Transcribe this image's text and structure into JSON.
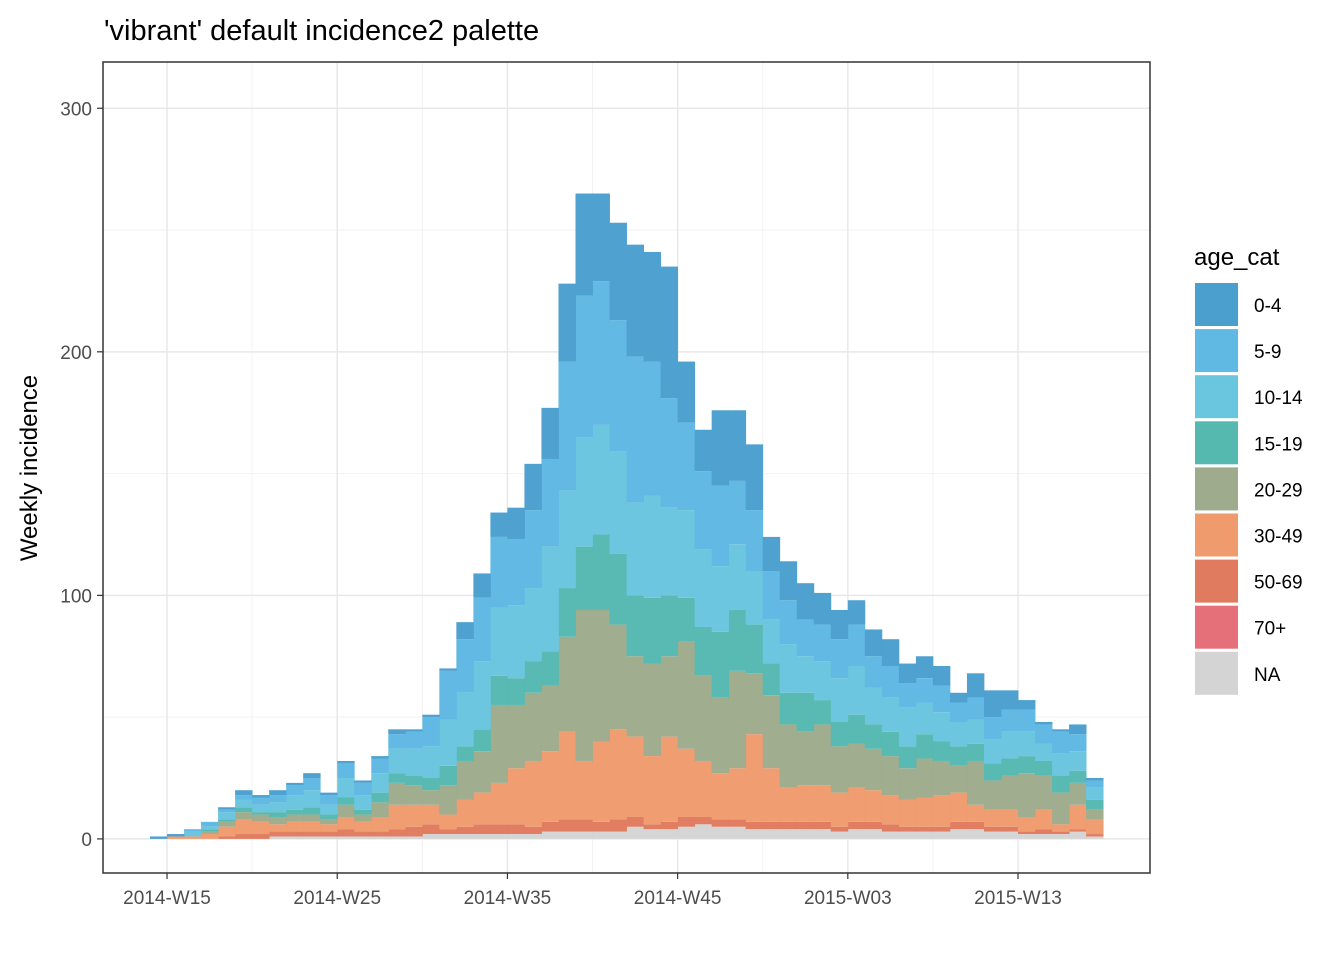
{
  "chart_data": {
    "type": "bar",
    "stacked": true,
    "title": "'vibrant' default incidence2 palette",
    "xlabel": "",
    "ylabel": "Weekly incidence",
    "ylim": [
      -14,
      319
    ],
    "yticks": [
      0,
      100,
      200,
      300
    ],
    "grid": true,
    "legend": {
      "title": "age_cat",
      "position": "right"
    },
    "x_start_week": "2014-W14",
    "x_ticks": [
      "2014-W15",
      "2014-W25",
      "2014-W35",
      "2014-W45",
      "2015-W03",
      "2015-W13"
    ],
    "categories": [
      "2014-W14",
      "2014-W15",
      "2014-W16",
      "2014-W17",
      "2014-W18",
      "2014-W19",
      "2014-W20",
      "2014-W21",
      "2014-W22",
      "2014-W23",
      "2014-W24",
      "2014-W25",
      "2014-W26",
      "2014-W27",
      "2014-W28",
      "2014-W29",
      "2014-W30",
      "2014-W31",
      "2014-W32",
      "2014-W33",
      "2014-W34",
      "2014-W35",
      "2014-W36",
      "2014-W37",
      "2014-W38",
      "2014-W39",
      "2014-W40",
      "2014-W41",
      "2014-W42",
      "2014-W43",
      "2014-W44",
      "2014-W45",
      "2014-W46",
      "2014-W47",
      "2014-W48",
      "2014-W49",
      "2014-W50",
      "2014-W51",
      "2014-W52",
      "2015-W01",
      "2015-W02",
      "2015-W03",
      "2015-W04",
      "2015-W05",
      "2015-W06",
      "2015-W07",
      "2015-W08",
      "2015-W09",
      "2015-W10",
      "2015-W11",
      "2015-W12",
      "2015-W13",
      "2015-W14",
      "2015-W15",
      "2015-W16",
      "2015-W17"
    ],
    "series": [
      {
        "name": "NA",
        "color": "#D4D4D4",
        "values": [
          0,
          0,
          0,
          0,
          0,
          0,
          0,
          1,
          1,
          1,
          1,
          1,
          1,
          1,
          1,
          1,
          2,
          2,
          2,
          2,
          2,
          2,
          2,
          3,
          3,
          3,
          3,
          3,
          5,
          4,
          4,
          5,
          6,
          5,
          5,
          4,
          4,
          4,
          4,
          4,
          3,
          4,
          4,
          3,
          3,
          3,
          3,
          4,
          4,
          3,
          3,
          2,
          2,
          2,
          3,
          1
        ]
      },
      {
        "name": "70+",
        "color": "#E5707A",
        "values": [
          0,
          0,
          0,
          0,
          0,
          0,
          0,
          0,
          0,
          0,
          0,
          0,
          0,
          0,
          0,
          0,
          0,
          0,
          0,
          0,
          0,
          0,
          0,
          0,
          0,
          0,
          0,
          0,
          0,
          0,
          0,
          0,
          0,
          0,
          0,
          0,
          0,
          0,
          0,
          0,
          0,
          0,
          0,
          0,
          0,
          0,
          0,
          0,
          0,
          0,
          0,
          0,
          0,
          0,
          0,
          0
        ]
      },
      {
        "name": "50-69",
        "color": "#E07B5F",
        "values": [
          0,
          0,
          0,
          0,
          1,
          2,
          2,
          2,
          2,
          2,
          2,
          3,
          2,
          2,
          3,
          4,
          4,
          2,
          3,
          4,
          4,
          4,
          3,
          4,
          5,
          5,
          4,
          5,
          4,
          2,
          3,
          4,
          3,
          3,
          3,
          3,
          3,
          3,
          3,
          3,
          2,
          3,
          3,
          3,
          2,
          2,
          2,
          3,
          3,
          2,
          2,
          1,
          2,
          1,
          1,
          1
        ]
      },
      {
        "name": "30-49",
        "color": "#F09B6E",
        "values": [
          0,
          1,
          1,
          2,
          4,
          6,
          5,
          3,
          4,
          4,
          3,
          5,
          4,
          6,
          10,
          9,
          8,
          6,
          11,
          13,
          17,
          23,
          27,
          29,
          36,
          24,
          33,
          37,
          33,
          28,
          35,
          28,
          23,
          19,
          21,
          36,
          22,
          14,
          15,
          15,
          14,
          14,
          13,
          12,
          11,
          12,
          13,
          12,
          7,
          7,
          7,
          6,
          8,
          3,
          10,
          6
        ]
      },
      {
        "name": "20-29",
        "color": "#9EAB8D",
        "values": [
          0,
          0,
          0,
          1,
          2,
          3,
          3,
          3,
          3,
          3,
          2,
          5,
          3,
          6,
          9,
          8,
          6,
          12,
          16,
          17,
          32,
          26,
          28,
          27,
          39,
          62,
          54,
          43,
          33,
          38,
          33,
          44,
          35,
          31,
          40,
          25,
          30,
          26,
          22,
          25,
          19,
          18,
          17,
          16,
          13,
          16,
          14,
          11,
          18,
          12,
          14,
          18,
          14,
          13,
          9,
          4
        ]
      },
      {
        "name": "15-19",
        "color": "#55B9B0",
        "values": [
          0,
          0,
          0,
          1,
          1,
          2,
          1,
          2,
          2,
          3,
          2,
          3,
          2,
          4,
          4,
          4,
          5,
          8,
          6,
          9,
          12,
          11,
          13,
          14,
          20,
          26,
          31,
          29,
          25,
          27,
          25,
          18,
          20,
          27,
          25,
          20,
          13,
          13,
          16,
          10,
          10,
          12,
          10,
          10,
          9,
          10,
          8,
          8,
          7,
          7,
          7,
          7,
          6,
          7,
          5,
          4
        ]
      },
      {
        "name": "10-14",
        "color": "#6AC5DE",
        "values": [
          0,
          0,
          2,
          1,
          3,
          3,
          3,
          4,
          6,
          7,
          4,
          8,
          6,
          8,
          10,
          11,
          13,
          19,
          22,
          28,
          28,
          30,
          30,
          43,
          40,
          45,
          45,
          42,
          38,
          42,
          36,
          36,
          32,
          27,
          27,
          22,
          18,
          20,
          15,
          16,
          18,
          20,
          15,
          14,
          16,
          13,
          12,
          10,
          10,
          10,
          11,
          10,
          7,
          9,
          8,
          5
        ]
      },
      {
        "name": "5-9",
        "color": "#5FB9E3",
        "values": [
          0,
          0,
          1,
          2,
          1,
          2,
          3,
          3,
          4,
          5,
          4,
          6,
          5,
          6,
          6,
          7,
          12,
          20,
          22,
          26,
          29,
          27,
          32,
          36,
          53,
          58,
          59,
          54,
          60,
          55,
          45,
          36,
          32,
          33,
          26,
          25,
          20,
          18,
          15,
          15,
          16,
          17,
          13,
          13,
          10,
          10,
          11,
          8,
          9,
          9,
          9,
          9,
          8,
          9,
          7,
          3
        ]
      },
      {
        "name": "0-4",
        "color": "#4B9FCF",
        "values": [
          1,
          1,
          0,
          0,
          1,
          2,
          1,
          2,
          1,
          2,
          1,
          1,
          1,
          1,
          2,
          1,
          1,
          1,
          7,
          10,
          10,
          13,
          19,
          21,
          32,
          42,
          36,
          40,
          46,
          45,
          54,
          25,
          17,
          31,
          29,
          27,
          14,
          16,
          15,
          13,
          12,
          10,
          11,
          11,
          8,
          9,
          8,
          4,
          10,
          11,
          8,
          4,
          1,
          1,
          4,
          1
        ]
      }
    ]
  }
}
